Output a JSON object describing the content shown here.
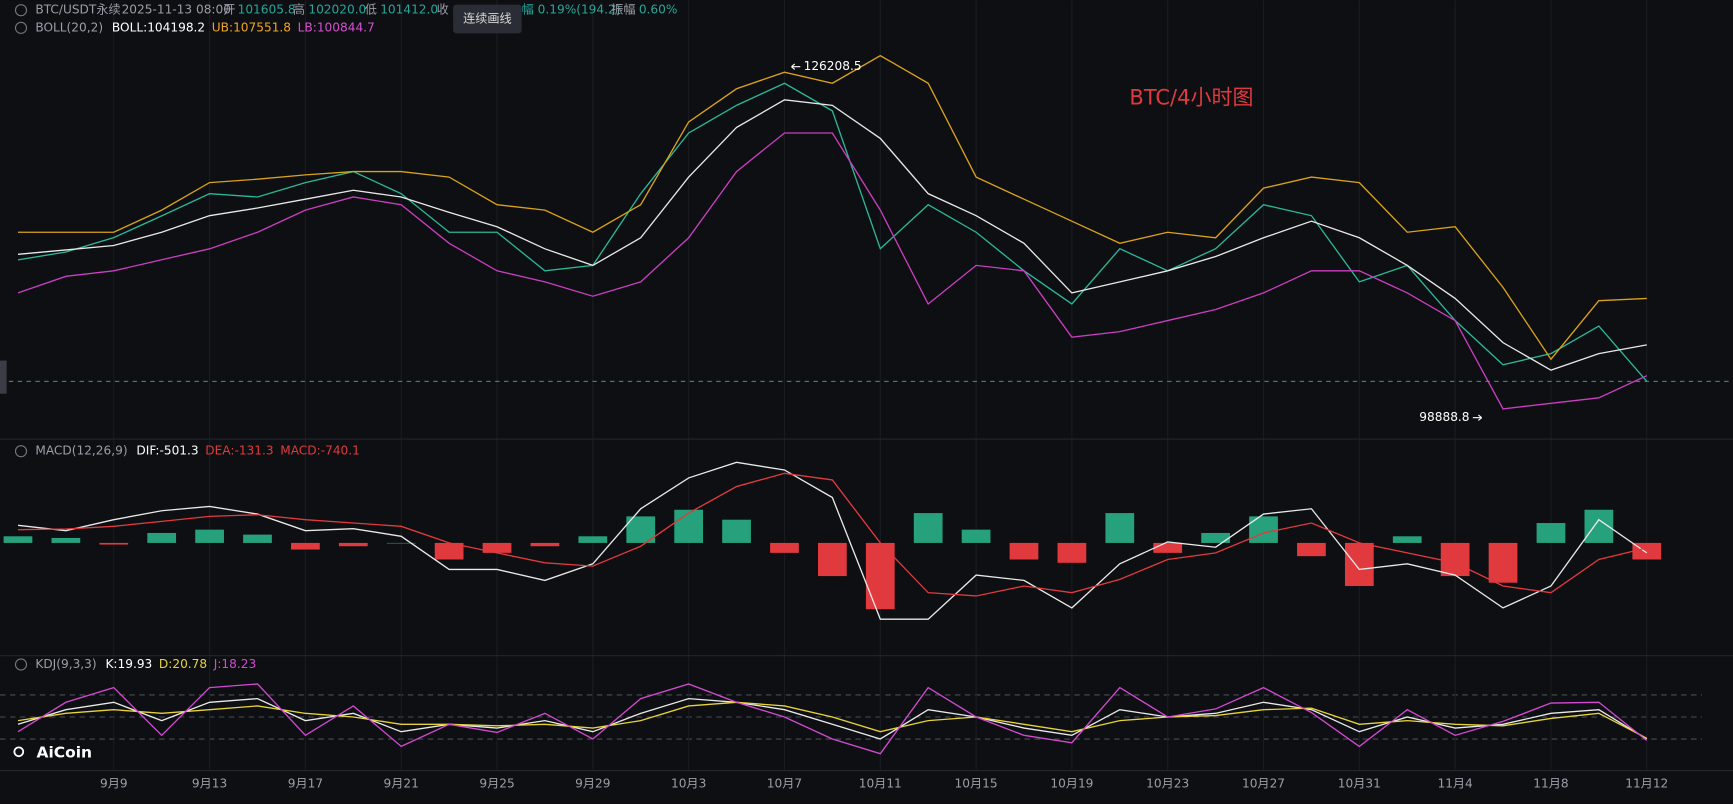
{
  "header": {
    "symbol": "BTC/USDT永续",
    "time": "2025-11-13 08:00",
    "open_label": "开",
    "open": "101605.8",
    "high_label": "高",
    "high": "102020.0",
    "low_label": "低",
    "low": "101412.0",
    "close_label": "收",
    "change": "幅 0.19%(194.2)",
    "amplitude_label": "振幅",
    "amplitude": "0.60%"
  },
  "tooltip": "连续画线",
  "watermark": "AiCoin",
  "chart_data": [
    {
      "type": "line",
      "title": "BTC/4小时图",
      "legend": {
        "label": "BOLL(20,2)",
        "items": [
          {
            "text": "BOLL:104198.2",
            "color": "#ffffff"
          },
          {
            "text": "UB:107551.8",
            "color": "#f0a52a"
          },
          {
            "text": "LB:100844.7",
            "color": "#d64fd0"
          }
        ]
      },
      "x": [
        5,
        7,
        9,
        11,
        13,
        15,
        17,
        19,
        21,
        23,
        25,
        27,
        29,
        31,
        33,
        35,
        37,
        39,
        41,
        43,
        45,
        47,
        49,
        51,
        53,
        55,
        57,
        59,
        61,
        63,
        65,
        67,
        69,
        71,
        73
      ],
      "xlim": [
        4.25,
        76.6
      ],
      "ylim": [
        97400,
        128800
      ],
      "last_price_line": true,
      "series": [
        {
          "color": "#2bb89a",
          "values": [
            111175,
            111780,
            112900,
            114600,
            116330,
            116070,
            117190,
            118050,
            116330,
            113320,
            113320,
            110320,
            110740,
            116330,
            121050,
            123200,
            124920,
            122770,
            112040,
            115470,
            113320,
            110320,
            107740,
            112040,
            110320,
            112040,
            115470,
            114610,
            109460,
            110740,
            106450,
            103010,
            103880,
            106020,
            101720
          ]
        },
        {
          "color": "#e8e8e8",
          "values": [
            111600,
            111950,
            112290,
            113320,
            114610,
            115210,
            115900,
            116590,
            116070,
            114870,
            113750,
            112030,
            110740,
            112890,
            117620,
            121480,
            123630,
            123200,
            120630,
            116330,
            114610,
            112460,
            108600,
            109460,
            110320,
            111430,
            112890,
            114180,
            112890,
            110740,
            108170,
            104730,
            102590,
            103880,
            104560
          ]
        },
        {
          "color": "#d9a21b",
          "values": [
            113320,
            113320,
            113320,
            115040,
            117190,
            117450,
            117790,
            118050,
            118050,
            117620,
            115470,
            115040,
            113320,
            115470,
            121910,
            124490,
            125780,
            124920,
            127070,
            124920,
            117620,
            115900,
            114180,
            112460,
            113320,
            112890,
            116760,
            117620,
            117190,
            113320,
            113750,
            109030,
            103440,
            108000,
            108170
          ]
        },
        {
          "color": "#c93fc0",
          "values": [
            108600,
            109890,
            110320,
            111180,
            112030,
            113320,
            115040,
            116070,
            115470,
            112460,
            110320,
            109460,
            108340,
            109460,
            112890,
            118050,
            121050,
            121050,
            115040,
            107740,
            110740,
            110320,
            105160,
            105590,
            106450,
            107310,
            108600,
            110320,
            110320,
            108600,
            106450,
            99580,
            100010,
            100440,
            102160
          ]
        }
      ],
      "annotations": [
        {
          "x": 37.2,
          "value": 126208.5,
          "side": "right"
        },
        {
          "x": 66.2,
          "value": 98888.8,
          "side": "left"
        }
      ]
    },
    {
      "type": "line",
      "legend": {
        "label": "MACD(12,26,9)",
        "items": [
          {
            "text": "DIF:-501.3",
            "color": "#ffffff"
          },
          {
            "text": "DEA:-131.3",
            "color": "#e0393e"
          },
          {
            "text": "MACD:-740.1",
            "color": "#e0393e"
          }
        ]
      },
      "x": [
        5,
        7,
        9,
        11,
        13,
        15,
        17,
        19,
        21,
        23,
        25,
        27,
        29,
        31,
        33,
        35,
        37,
        39,
        41,
        43,
        45,
        47,
        49,
        51,
        53,
        55,
        57,
        59,
        61,
        63,
        65,
        67,
        69,
        71,
        73
      ],
      "xlim": [
        4.25,
        76.6
      ],
      "ylim": [
        -3300,
        2700
      ],
      "series": [
        {
          "type": "bar",
          "color": "#26a17b",
          "negative_color": "#e0393e",
          "values": [
            200,
            150,
            -50,
            300,
            400,
            250,
            -200,
            -100,
            0,
            -500,
            -300,
            -100,
            200,
            800,
            1000,
            700,
            -300,
            -1000,
            -2000,
            900,
            400,
            -500,
            -600,
            900,
            -300,
            300,
            800,
            -400,
            -1300,
            200,
            -1000,
            -1200,
            600,
            1000,
            -500
          ]
        },
        {
          "color": "#e8e8e8",
          "values": [
            530,
            370,
            700,
            970,
            1100,
            870,
            370,
            430,
            200,
            -800,
            -800,
            -1130,
            -630,
            1030,
            1960,
            2430,
            2200,
            1370,
            -2300,
            -2300,
            -970,
            -1130,
            -1960,
            -630,
            30,
            -130,
            870,
            1030,
            -800,
            -630,
            -970,
            -1960,
            -1300,
            700,
            -300
          ]
        },
        {
          "color": "#e03a3e",
          "values": [
            400,
            420,
            500,
            650,
            800,
            850,
            700,
            600,
            500,
            0,
            -300,
            -600,
            -700,
            -100,
            900,
            1700,
            2100,
            1900,
            0,
            -1500,
            -1600,
            -1300,
            -1500,
            -1100,
            -500,
            -300,
            300,
            600,
            0,
            -300,
            -600,
            -1300,
            -1500,
            -500,
            -150
          ]
        }
      ]
    },
    {
      "type": "line",
      "legend": {
        "label": "KDJ(9,3,3)",
        "items": [
          {
            "text": "K:19.93",
            "color": "#ffffff"
          },
          {
            "text": "D:20.78",
            "color": "#e6d23a"
          },
          {
            "text": "J:18.23",
            "color": "#d24ad2"
          }
        ]
      },
      "x": [
        5,
        7,
        9,
        11,
        13,
        15,
        17,
        19,
        21,
        23,
        25,
        27,
        29,
        31,
        33,
        35,
        37,
        39,
        41,
        43,
        45,
        47,
        49,
        51,
        53,
        55,
        57,
        59,
        61,
        63,
        65,
        67,
        69,
        71,
        73
      ],
      "xlim": [
        4.25,
        76.6
      ],
      "ylim": [
        -20,
        120
      ],
      "yticks": [
        20,
        50,
        80
      ],
      "xticks": [
        {
          "value": 9,
          "label": "9月9"
        },
        {
          "value": 13,
          "label": "9月13"
        },
        {
          "value": 17,
          "label": "9月17"
        },
        {
          "value": 21,
          "label": "9月21"
        },
        {
          "value": 25,
          "label": "9月25"
        },
        {
          "value": 29,
          "label": "9月29"
        },
        {
          "value": 33,
          "label": "10月3"
        },
        {
          "value": 37,
          "label": "10月7"
        },
        {
          "value": 41,
          "label": "10月11"
        },
        {
          "value": 45,
          "label": "10月15"
        },
        {
          "value": 49,
          "label": "10月19"
        },
        {
          "value": 53,
          "label": "10月23"
        },
        {
          "value": 57,
          "label": "10月27"
        },
        {
          "value": 61,
          "label": "10月31"
        },
        {
          "value": 65,
          "label": "11月4"
        },
        {
          "value": 69,
          "label": "11月8"
        },
        {
          "value": 73,
          "label": "11月12"
        }
      ],
      "series": [
        {
          "color": "#e8e8e8",
          "values": [
            40,
            60,
            70,
            45,
            70,
            75,
            45,
            55,
            30,
            40,
            35,
            45,
            30,
            55,
            75,
            70,
            60,
            40,
            20,
            60,
            50,
            35,
            25,
            60,
            50,
            55,
            70,
            60,
            30,
            50,
            35,
            40,
            55,
            60,
            20
          ]
        },
        {
          "color": "#e6d23a",
          "values": [
            45,
            55,
            60,
            55,
            60,
            65,
            55,
            50,
            40,
            40,
            38,
            40,
            35,
            45,
            65,
            70,
            65,
            50,
            30,
            45,
            50,
            40,
            30,
            45,
            50,
            52,
            60,
            62,
            40,
            45,
            40,
            38,
            48,
            55,
            21
          ]
        },
        {
          "color": "#d24ad2",
          "values": [
            30,
            70,
            90,
            25,
            90,
            95,
            25,
            65,
            10,
            40,
            29,
            55,
            20,
            75,
            95,
            70,
            50,
            20,
            0,
            90,
            50,
            25,
            15,
            90,
            50,
            61,
            90,
            56,
            10,
            60,
            25,
            44,
            69,
            70,
            18
          ]
        }
      ]
    }
  ]
}
